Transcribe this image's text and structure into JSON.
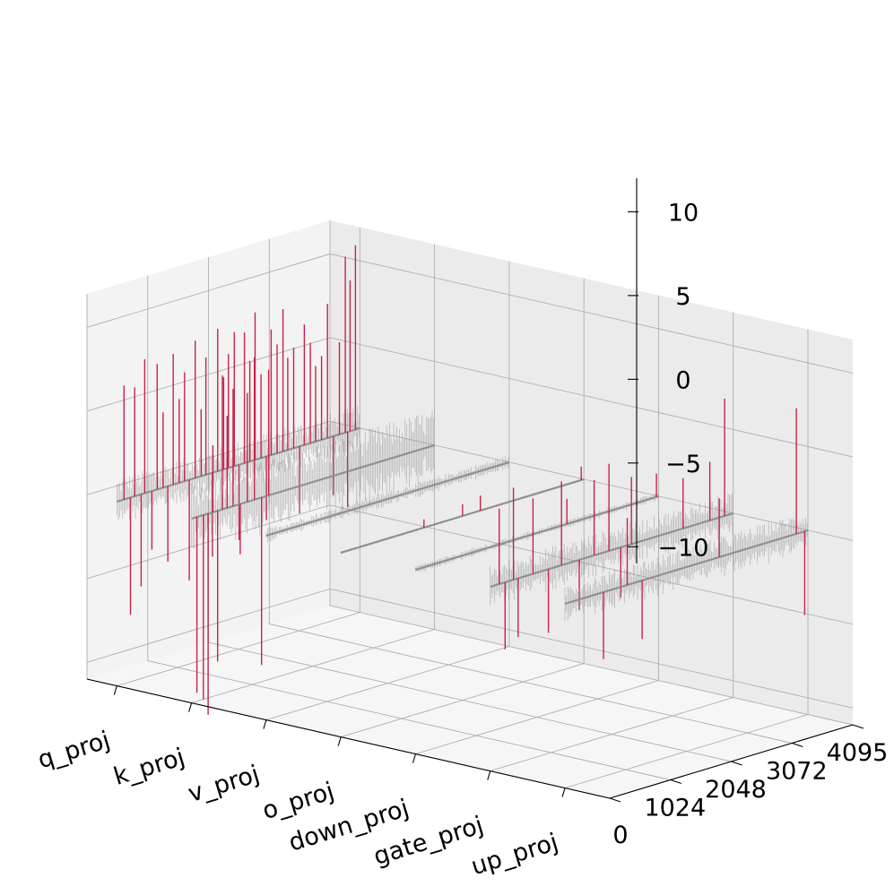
{
  "chart_data": {
    "type": "3d-line",
    "title": "",
    "xlabel": "",
    "ylabel": "",
    "zlabel": "",
    "x_categories": [
      "q_proj",
      "k_proj",
      "v_proj",
      "o_proj",
      "down_proj",
      "gate_proj",
      "up_proj"
    ],
    "y_ticks": [
      0,
      1024,
      2048,
      3072,
      4095
    ],
    "y_range": [
      0,
      4095
    ],
    "z_ticks": [
      10,
      5,
      0,
      -5,
      -10
    ],
    "z_tick_labels": [
      "10",
      "5",
      "0",
      "−5",
      "−10"
    ],
    "z_range": [
      -11,
      12
    ],
    "grid": true,
    "colors": {
      "noise": "#8e8e8e",
      "outlier": "#c8234a",
      "pane_left": "#f3f3f3",
      "pane_back": "#ebebeb",
      "pane_floor": "#f6f6f6"
    },
    "series": [
      {
        "category": "q_proj",
        "noise_amplitude": 1.4,
        "outliers": [
          {
            "channel": 120,
            "value": 6.8
          },
          {
            "channel": 230,
            "value": -7.0
          },
          {
            "channel": 300,
            "value": 6.5
          },
          {
            "channel": 410,
            "value": -5.5
          },
          {
            "channel": 470,
            "value": 8.0
          },
          {
            "channel": 590,
            "value": -3.5
          },
          {
            "channel": 680,
            "value": 7.5
          },
          {
            "channel": 780,
            "value": 4.5
          },
          {
            "channel": 860,
            "value": -4.5
          },
          {
            "channel": 950,
            "value": 7.8
          },
          {
            "channel": 1050,
            "value": 5.0
          },
          {
            "channel": 1140,
            "value": 6.5
          },
          {
            "channel": 1220,
            "value": -6.0
          },
          {
            "channel": 1320,
            "value": 8.2
          },
          {
            "channel": 1420,
            "value": 4.0
          },
          {
            "channel": 1500,
            "value": 7.0
          },
          {
            "channel": 1610,
            "value": -5.0
          },
          {
            "channel": 1700,
            "value": 8.5
          },
          {
            "channel": 1800,
            "value": 5.5
          },
          {
            "channel": 1880,
            "value": 6.8
          },
          {
            "channel": 1980,
            "value": 8.0
          },
          {
            "channel": 2060,
            "value": -4.5
          },
          {
            "channel": 2150,
            "value": 7.8
          },
          {
            "channel": 2240,
            "value": 6.0
          },
          {
            "channel": 2330,
            "value": 8.8
          },
          {
            "channel": 2430,
            "value": 5.0
          },
          {
            "channel": 2520,
            "value": -3.8
          },
          {
            "channel": 2600,
            "value": 7.5
          },
          {
            "channel": 2700,
            "value": 6.5
          },
          {
            "channel": 2800,
            "value": 8.5
          },
          {
            "channel": 2880,
            "value": 5.5
          },
          {
            "channel": 2980,
            "value": 6.0
          },
          {
            "channel": 3080,
            "value": -4.0
          },
          {
            "channel": 3160,
            "value": 7.2
          },
          {
            "channel": 3260,
            "value": 6.0
          },
          {
            "channel": 3350,
            "value": 4.5
          },
          {
            "channel": 3450,
            "value": 5.0
          },
          {
            "channel": 3550,
            "value": 8.0
          },
          {
            "channel": 3650,
            "value": -3.5
          },
          {
            "channel": 3750,
            "value": 5.5
          },
          {
            "channel": 3850,
            "value": 10.5
          },
          {
            "channel": 3930,
            "value": 9.0
          },
          {
            "channel": 4020,
            "value": 11.0
          },
          {
            "channel": 3890,
            "value": -4.5
          }
        ]
      },
      {
        "category": "k_proj",
        "noise_amplitude": 2.2,
        "outliers": [
          {
            "channel": 90,
            "value": -10.5
          },
          {
            "channel": 200,
            "value": -11.0
          },
          {
            "channel": 280,
            "value": -12.0
          },
          {
            "channel": 360,
            "value": 4.0
          },
          {
            "channel": 440,
            "value": -9.0
          },
          {
            "channel": 520,
            "value": 8.0
          },
          {
            "channel": 600,
            "value": 5.5
          },
          {
            "channel": 700,
            "value": 7.0
          },
          {
            "channel": 820,
            "value": -3.0
          },
          {
            "channel": 940,
            "value": 6.5
          },
          {
            "channel": 1060,
            "value": 8.5
          },
          {
            "channel": 1180,
            "value": -10.0
          },
          {
            "channel": 1300,
            "value": 7.5
          }
        ]
      },
      {
        "category": "v_proj",
        "noise_amplitude": 0.45,
        "outliers": []
      },
      {
        "category": "o_proj",
        "noise_amplitude": 0.08,
        "outliers": [
          {
            "channel": 1400,
            "value": 0.5
          },
          {
            "channel": 2050,
            "value": 0.7
          },
          {
            "channel": 2350,
            "value": 0.9
          },
          {
            "channel": 4050,
            "value": 0.8
          }
        ]
      },
      {
        "category": "down_proj",
        "noise_amplitude": 0.25,
        "outliers": [
          {
            "channel": 2550,
            "value": 1.5
          },
          {
            "channel": 4060,
            "value": 1.4
          }
        ]
      },
      {
        "category": "gate_proj",
        "noise_amplitude": 1.3,
        "outliers": [
          {
            "channel": 150,
            "value": 4.5
          },
          {
            "channel": 250,
            "value": -4.0
          },
          {
            "channel": 390,
            "value": 5.5
          },
          {
            "channel": 470,
            "value": -3.5
          },
          {
            "channel": 720,
            "value": 4.5
          },
          {
            "channel": 980,
            "value": -3.8
          },
          {
            "channel": 1200,
            "value": 5.0
          },
          {
            "channel": 1500,
            "value": -3.0
          },
          {
            "channel": 1750,
            "value": 4.5
          },
          {
            "channel": 2000,
            "value": 5.2
          },
          {
            "channel": 2200,
            "value": -3.0
          },
          {
            "channel": 2380,
            "value": 4.0
          },
          {
            "channel": 3250,
            "value": 3.0
          },
          {
            "channel": 3700,
            "value": 3.5
          },
          {
            "channel": 3950,
            "value": 7.0
          }
        ]
      },
      {
        "category": "up_proj",
        "noise_amplitude": 1.2,
        "outliers": [
          {
            "channel": 650,
            "value": -4.0
          },
          {
            "channel": 1050,
            "value": 4.0
          },
          {
            "channel": 1300,
            "value": -3.5
          },
          {
            "channel": 2600,
            "value": 3.5
          },
          {
            "channel": 3900,
            "value": 7.5
          },
          {
            "channel": 4040,
            "value": -5.0
          }
        ]
      }
    ]
  }
}
